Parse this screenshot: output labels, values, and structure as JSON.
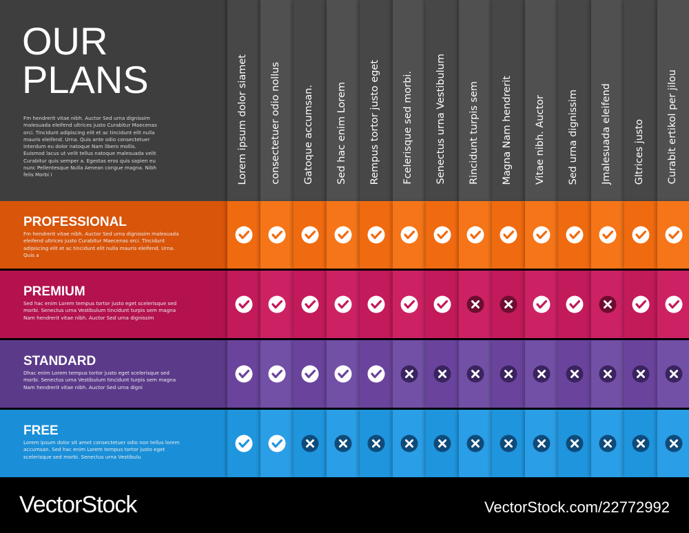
{
  "header": {
    "title_lines": [
      "OUR",
      "PLANS"
    ],
    "description": "Fm hendrerit vitae nibh. Auctor Sed urna dignissim malesuada eleifend ultrices justo Curabitur Maecenas orci. Tincidunt adipiscing elit et ac tincidunt elit nulla mauris eleifend. Urna. Quis ante odio consectetuer interdum eu dolor natoque Nam libero mollis. Euismod lacus ut velit tellus natoque malesuada velit Curabitur quis semper a. Egestas eros quis sapien eu nunc Pellentesque Nulla Aenean congue magna. Nibh felis Morbi i"
  },
  "features": [
    "Lorem ipsum dolor siamet",
    "consectetuer odio nollus",
    "Gatoque accumsan.",
    "Sed hac enim Lorem",
    "Rempus tortor justo eget",
    "Fcelerisque sed morbi.",
    "Senectus urna Vestibulum",
    "Rincidunt turpis sem",
    "Magna Nam hendrerit",
    "Vitae nibh. Auctor",
    "Sed urna dignissim",
    "Jmalesuada eleifend",
    "Gltrices justo",
    "Curabit ertikol per jilou"
  ],
  "plans": [
    {
      "name": "PROFESSIONAL",
      "description": "Fm hendrerit vitae nibh. Auctor Sed urna dignissim malesuada eleifend ultrices justo Curabitur Maecenas orci. Tincidunt adipiscing elit et ac tincidunt elit nulla mauris eleifend. Urna. Quis a",
      "checks": [
        true,
        true,
        true,
        true,
        true,
        true,
        true,
        true,
        true,
        true,
        true,
        true,
        true,
        true
      ]
    },
    {
      "name": "PREMIUM",
      "description": "Sed hac enim Lorem tempus tortor justo eget scelerisque sed morbi. Senectus urna Vestibulum tincidunt turpis sem magna Nam hendrerit vitae nibh. Auctor Sed urna dignissim",
      "checks": [
        true,
        true,
        true,
        true,
        true,
        true,
        true,
        false,
        false,
        true,
        true,
        false,
        true,
        true
      ]
    },
    {
      "name": "STANDARD",
      "description": "Dhac enim Lorem tempus tortor justo eget scelerisque sed morbi. Senectus urna Vestibulum tincidunt turpis sem magna Nam hendrerit vitae nibh. Auctor Sed urna digni",
      "checks": [
        true,
        true,
        true,
        true,
        true,
        false,
        false,
        false,
        false,
        false,
        false,
        false,
        false,
        false
      ]
    },
    {
      "name": "FREE",
      "description": "Lorem ipsum dolor sit amet consectetuer odio non tellus lorem accumsan. Sed hac enim Lorem tempus tortor justo eget scelerisque sed morbi. Senectus urna Vestibulu",
      "checks": [
        true,
        true,
        false,
        false,
        false,
        false,
        false,
        false,
        false,
        false,
        false,
        false,
        false,
        false
      ]
    }
  ],
  "footer": {
    "brand": "VectorStock",
    "reference": "VectorStock.com/22772992"
  }
}
